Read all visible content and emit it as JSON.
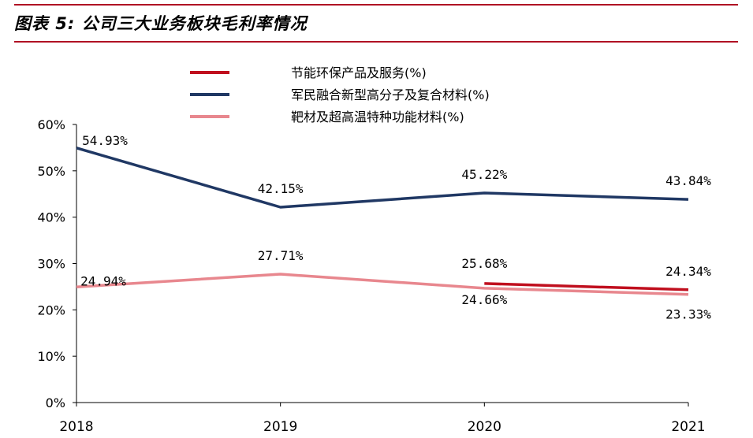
{
  "header": {
    "title": "图表 5: 公司三大业务板块毛利率情况"
  },
  "colors": {
    "accent": "#b00d23",
    "series": [
      "#c00f1e",
      "#203864",
      "#e8878e"
    ]
  },
  "chart_data": {
    "type": "line",
    "x": [
      "2018",
      "2019",
      "2020",
      "2021"
    ],
    "ylim": [
      0,
      60
    ],
    "yticks": [
      "0%",
      "10%",
      "20%",
      "30%",
      "40%",
      "50%",
      "60%"
    ],
    "yticks_values": [
      0,
      10,
      20,
      30,
      40,
      50,
      60
    ],
    "grid": false,
    "legend_position": "top",
    "series": [
      {
        "name": "节能环保产品及服务(%)",
        "color": "#c00f1e",
        "values": [
          null,
          null,
          25.68,
          24.34
        ],
        "labels": [
          null,
          null,
          "25.68%",
          "24.34%"
        ]
      },
      {
        "name": "军民融合新型高分子及复合材料(%)",
        "color": "#203864",
        "values": [
          54.93,
          42.15,
          45.22,
          43.84
        ],
        "labels": [
          "54.93%",
          "42.15%",
          "45.22%",
          "43.84%"
        ]
      },
      {
        "name": "靶材及超高温特种功能材料(%)",
        "color": "#e8878e",
        "values": [
          24.94,
          27.71,
          24.66,
          23.33
        ],
        "labels": [
          "24.94%",
          "27.71%",
          "24.66%",
          "23.33%"
        ]
      }
    ]
  }
}
